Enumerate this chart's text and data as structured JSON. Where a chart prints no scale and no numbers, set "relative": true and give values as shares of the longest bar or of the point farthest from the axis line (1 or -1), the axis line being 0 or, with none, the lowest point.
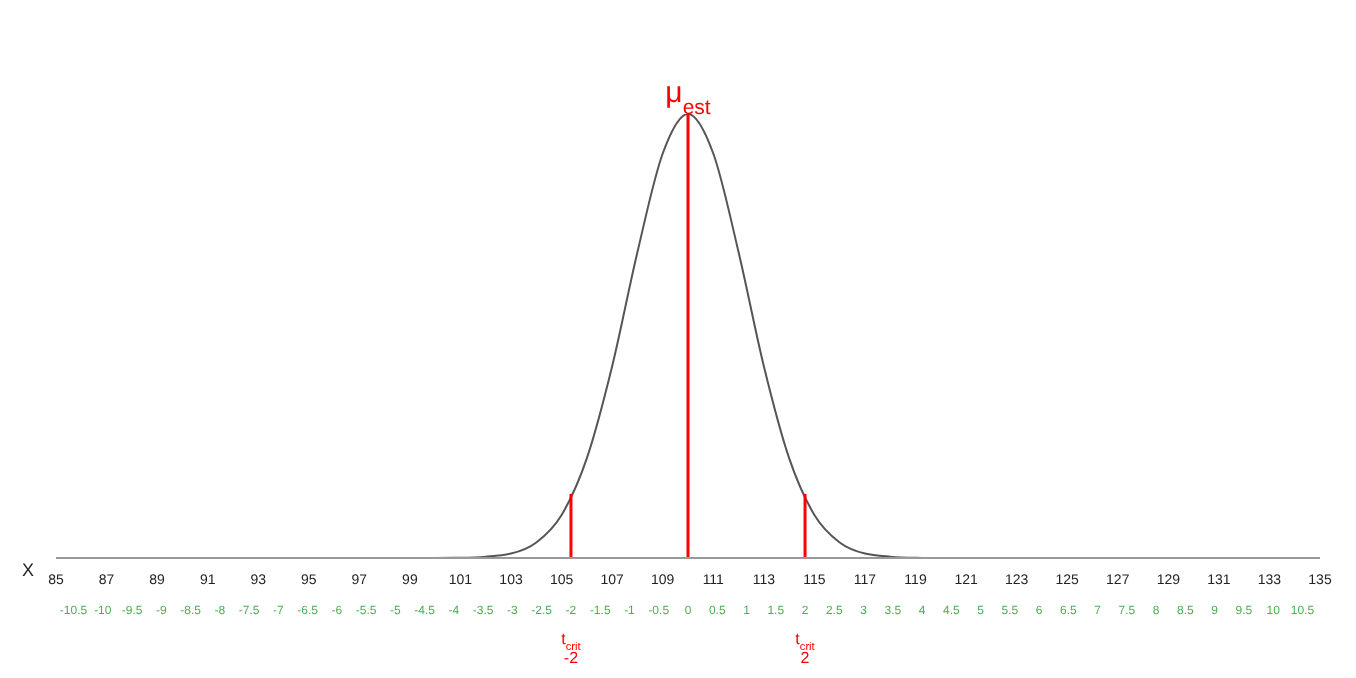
{
  "chart_data": {
    "type": "line",
    "relative": true,
    "xlabel": "X",
    "series": [
      {
        "color": "#555555",
        "x": [
          85,
          90,
          95,
          98,
          100,
          101,
          102,
          103,
          104,
          105,
          106,
          107,
          108,
          109,
          110,
          111,
          112,
          113,
          114,
          115,
          116,
          117,
          118,
          119,
          120,
          122,
          125,
          130,
          135
        ],
        "values": [
          0,
          0,
          0,
          0,
          0,
          0.0005,
          0.003,
          0.01,
          0.035,
          0.097,
          0.225,
          0.432,
          0.689,
          0.911,
          1,
          0.911,
          0.689,
          0.432,
          0.225,
          0.097,
          0.035,
          0.01,
          0.003,
          0.0005,
          0,
          0,
          0,
          0,
          0
        ]
      }
    ],
    "xlim": [
      85,
      135
    ],
    "xticks": [
      85,
      87,
      89,
      91,
      93,
      95,
      97,
      99,
      101,
      103,
      105,
      107,
      109,
      111,
      113,
      115,
      117,
      119,
      121,
      123,
      125,
      127,
      129,
      131,
      133,
      135
    ],
    "x2lim": [
      -10.8,
      10.8
    ],
    "x2ticks": [
      -10.5,
      -10,
      -9.5,
      -9,
      -8.5,
      -8,
      -7.5,
      -7,
      -6.5,
      -6,
      -5.5,
      -5,
      -4.5,
      -4,
      -3.5,
      -3,
      -2.5,
      -2,
      -1.5,
      -1,
      -0.5,
      0,
      0.5,
      1,
      1.5,
      2,
      2.5,
      3,
      3.5,
      4,
      4.5,
      5,
      5.5,
      6,
      6.5,
      7,
      7.5,
      8,
      8.5,
      9,
      9.5,
      10,
      10.5
    ],
    "ref_lines": [
      {
        "axis": "x",
        "value": 110,
        "label": "μ$_{est}$",
        "color": "#ff0000"
      },
      {
        "axis": "x2",
        "value": -2,
        "label": "t$_{crit}$\n-2",
        "color": "#ff0000"
      },
      {
        "axis": "x2",
        "value": 2,
        "label": "t$_{crit}$\n2",
        "color": "#ff0000"
      }
    ],
    "grid": false,
    "legend": false,
    "marker": "none",
    "line_style": "solid"
  }
}
